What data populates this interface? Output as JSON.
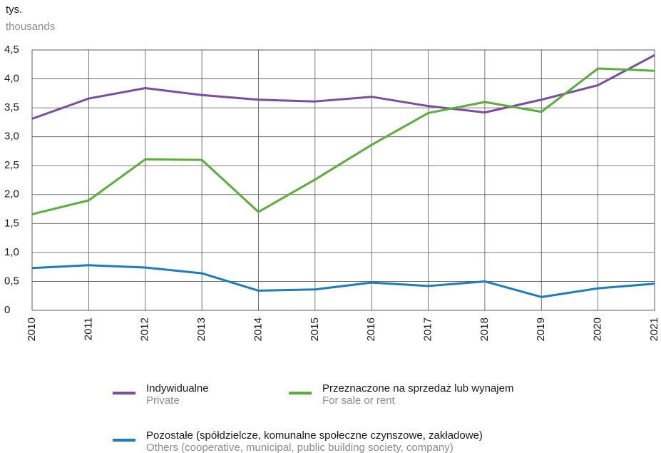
{
  "chart_data": {
    "type": "line",
    "y_label": "tys.",
    "y_label_secondary": "thousands",
    "categories": [
      "2010",
      "2011",
      "2012",
      "2013",
      "2014",
      "2015",
      "2016",
      "2017",
      "2018",
      "2019",
      "2020",
      "2021"
    ],
    "series": [
      {
        "name": "Indywidualne",
        "name_secondary": "Private",
        "color": "#7b4c9f",
        "values": [
          3.31,
          3.66,
          3.84,
          3.72,
          3.64,
          3.61,
          3.69,
          3.53,
          3.42,
          3.64,
          3.89,
          4.41
        ]
      },
      {
        "name": "Przeznaczone na sprzedaż lub wynajem",
        "name_secondary": "For sale or rent",
        "color": "#5aaf3a",
        "values": [
          1.66,
          1.9,
          2.61,
          2.6,
          1.7,
          2.26,
          2.86,
          3.41,
          3.6,
          3.43,
          4.18,
          4.14
        ]
      },
      {
        "name": "Pozostałe (spółdzielcze, komunalne społeczne czynszowe, zakładowe)",
        "name_secondary": "Others (cooperative, municipal, public building society, company)",
        "color": "#1a7dc0",
        "values": [
          0.73,
          0.78,
          0.74,
          0.64,
          0.34,
          0.36,
          0.48,
          0.42,
          0.5,
          0.23,
          0.38,
          0.46
        ]
      }
    ],
    "ylim": [
      0,
      4.5
    ],
    "yticks": [
      0,
      {
        "value": 0.5,
        "label": "0,5"
      },
      {
        "value": 1.0,
        "label": "1,0"
      },
      {
        "value": 1.5,
        "label": "1,5"
      },
      {
        "value": 2.0,
        "label": "2,0"
      },
      {
        "value": 2.5,
        "label": "2,5"
      },
      {
        "value": 3.0,
        "label": "3,0"
      },
      {
        "value": 3.5,
        "label": "3,5"
      },
      {
        "value": 4.0,
        "label": "4,0"
      },
      {
        "value": 4.5,
        "label": "4,5"
      }
    ],
    "grid": true
  }
}
